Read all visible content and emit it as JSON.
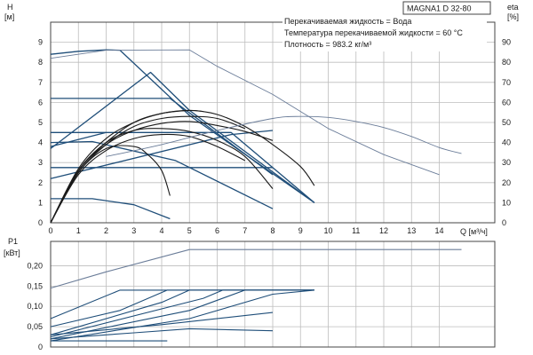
{
  "chart_data": [
    {
      "type": "line",
      "title": "MAGNA1 D 32-80",
      "annotations": [
        "Перекачиваемая жидкость = Вода",
        "Температура перекачиваемой жидкости = 60 °C",
        "Плотность = 983.2 кг/м³"
      ],
      "ylabel": "H",
      "yunit": "[м]",
      "ylabel_right": "eta",
      "yunit_right": "[%]",
      "xlabel": "Q [м³/ч]",
      "xlim": [
        0,
        16
      ],
      "ylim": [
        0,
        10
      ],
      "ylim_right": [
        0,
        100
      ],
      "xticks": [
        "0",
        "1",
        "2",
        "3",
        "4",
        "5",
        "6",
        "7",
        "8",
        "9",
        "10",
        "11",
        "12",
        "13",
        "14"
      ],
      "yticks": [
        "0",
        "1",
        "2",
        "3",
        "4",
        "5",
        "6",
        "7",
        "8",
        "9"
      ],
      "yticks_right": [
        "0",
        "10",
        "20",
        "30",
        "40",
        "50",
        "60",
        "70",
        "80",
        "90"
      ],
      "grid": true,
      "series": [
        {
          "group": "head_curve",
          "color": "#1f4e79",
          "points": [
            [
              0,
              8.4
            ],
            [
              1,
              8.55
            ],
            [
              2,
              8.62
            ],
            [
              2.5,
              8.6
            ],
            [
              5,
              5.35
            ],
            [
              9.5,
              1.0
            ]
          ]
        },
        {
          "group": "head_curve",
          "color": "#1f4e79",
          "points": [
            [
              0,
              3.7
            ],
            [
              3.6,
              7.5
            ],
            [
              5,
              5.6
            ],
            [
              9.5,
              1.0
            ]
          ]
        },
        {
          "group": "head_curve",
          "color": "#1f4e79",
          "points": [
            [
              0,
              6.2
            ],
            [
              4.3,
              6.2
            ],
            [
              8,
              2.4
            ]
          ]
        },
        {
          "group": "head_curve",
          "color": "#1f4e79",
          "points": [
            [
              0,
              4.5
            ],
            [
              2.5,
              4.5
            ],
            [
              6.5,
              4.5
            ],
            [
              9.5,
              1.0
            ]
          ]
        },
        {
          "group": "head_curve",
          "color": "#1f4e79",
          "points": [
            [
              0,
              2.75
            ],
            [
              6.2,
              2.75
            ],
            [
              8,
              2.75
            ]
          ]
        },
        {
          "group": "head_curve",
          "color": "#1f4e79",
          "points": [
            [
              0,
              4.0
            ],
            [
              1.5,
              4.05
            ],
            [
              4.5,
              3.1
            ],
            [
              8,
              0.7
            ]
          ]
        },
        {
          "group": "head_curve",
          "color": "#1f4e79",
          "points": [
            [
              0,
              2.2
            ],
            [
              6.5,
              4.4
            ],
            [
              8,
              4.6
            ]
          ]
        },
        {
          "group": "head_curve",
          "color": "#1f4e79",
          "points": [
            [
              0,
              1.2
            ],
            [
              1.5,
              1.2
            ],
            [
              3,
              0.9
            ],
            [
              4.3,
              0.2
            ]
          ]
        },
        {
          "group": "head_curve",
          "color": "#1f4e79",
          "points": [
            [
              0,
              3.8
            ],
            [
              2,
              4.5
            ]
          ]
        },
        {
          "group": "efficiency",
          "color": "#1a1a1a",
          "points": [
            [
              0,
              0
            ],
            [
              1,
              2.6
            ],
            [
              2,
              4.0
            ],
            [
              3,
              5.0
            ],
            [
              4,
              5.45
            ],
            [
              5,
              5.6
            ],
            [
              6,
              5.4
            ],
            [
              7,
              4.8
            ],
            [
              8,
              3.9
            ],
            [
              9,
              2.8
            ],
            [
              9.5,
              1.85
            ]
          ]
        },
        {
          "group": "efficiency",
          "color": "#1a1a1a",
          "points": [
            [
              0,
              0
            ],
            [
              1,
              2.7
            ],
            [
              2,
              4.2
            ],
            [
              3,
              5.0
            ],
            [
              4,
              5.45
            ],
            [
              5,
              5.6
            ],
            [
              5.5,
              5.55
            ]
          ]
        },
        {
          "group": "efficiency",
          "color": "#1a1a1a",
          "points": [
            [
              0,
              0
            ],
            [
              1,
              2.6
            ],
            [
              2,
              4.0
            ],
            [
              3,
              4.6
            ],
            [
              4,
              4.7
            ],
            [
              5,
              4.55
            ],
            [
              6,
              4.1
            ],
            [
              7,
              3.3
            ],
            [
              8,
              1.7
            ]
          ]
        },
        {
          "group": "efficiency",
          "color": "#1a1a1a",
          "points": [
            [
              0,
              0
            ],
            [
              1,
              2.6
            ],
            [
              2,
              3.9
            ],
            [
              3,
              4.6
            ],
            [
              4,
              4.95
            ],
            [
              5,
              5.05
            ],
            [
              6,
              4.85
            ],
            [
              7,
              4.55
            ],
            [
              8,
              4.1
            ]
          ]
        },
        {
          "group": "efficiency",
          "color": "#1a1a1a",
          "points": [
            [
              0,
              0
            ],
            [
              1,
              2.5
            ],
            [
              2,
              3.7
            ],
            [
              3,
              3.8
            ],
            [
              3.5,
              3.4
            ],
            [
              4,
              2.6
            ],
            [
              4.3,
              1.35
            ]
          ]
        },
        {
          "group": "efficiency",
          "color": "#1a1a1a",
          "points": [
            [
              0,
              0
            ],
            [
              1,
              2.4
            ],
            [
              2,
              3.6
            ],
            [
              3,
              4.2
            ],
            [
              4,
              4.4
            ],
            [
              5,
              4.3
            ],
            [
              6,
              3.8
            ],
            [
              7,
              3.1
            ]
          ]
        },
        {
          "group": "efficiency",
          "color": "#1a1a1a",
          "points": [
            [
              0,
              0
            ],
            [
              1,
              2.5
            ],
            [
              2,
              3.9
            ],
            [
              3,
              4.8
            ],
            [
              4,
              5.2
            ],
            [
              5,
              5.3
            ],
            [
              6,
              5.2
            ],
            [
              7,
              4.7
            ]
          ]
        },
        {
          "group": "p1_envelope",
          "color": "#6b7d99",
          "points": [
            [
              0,
              8.2
            ],
            [
              2,
              8.6
            ],
            [
              5,
              8.62
            ],
            [
              6,
              7.8
            ],
            [
              8,
              6.4
            ],
            [
              10,
              4.7
            ],
            [
              12,
              3.4
            ],
            [
              14,
              2.4
            ]
          ]
        },
        {
          "group": "eta_envelope",
          "color": "#6b7d99",
          "points": [
            [
              2,
              3.3
            ],
            [
              4,
              3.9
            ],
            [
              6,
              4.6
            ],
            [
              8,
              5.2
            ],
            [
              9,
              5.3
            ],
            [
              10,
              5.25
            ],
            [
              11,
              5.05
            ],
            [
              12,
              4.75
            ],
            [
              13,
              4.3
            ],
            [
              14,
              3.75
            ],
            [
              14.8,
              3.45
            ]
          ]
        }
      ]
    },
    {
      "type": "line",
      "ylabel": "P1",
      "yunit": "[кВт]",
      "xlim": [
        0,
        16
      ],
      "ylim": [
        0,
        0.26
      ],
      "yticks": [
        "0",
        "0,05",
        "0,10",
        "0,15",
        "0,20"
      ],
      "grid": true,
      "series": [
        {
          "group": "power",
          "color": "#6b7d99",
          "points": [
            [
              0,
              0.145
            ],
            [
              2,
              0.185
            ],
            [
              5,
              0.24
            ],
            [
              6.5,
              0.24
            ],
            [
              14.8,
              0.24
            ]
          ]
        },
        {
          "group": "power",
          "color": "#1f4e79",
          "points": [
            [
              0,
              0.07
            ],
            [
              2.5,
              0.14
            ],
            [
              9.5,
              0.14
            ]
          ]
        },
        {
          "group": "power",
          "color": "#1f4e79",
          "points": [
            [
              0,
              0.05
            ],
            [
              2.5,
              0.09
            ],
            [
              4.2,
              0.14
            ],
            [
              9.5,
              0.14
            ]
          ]
        },
        {
          "group": "power",
          "color": "#1f4e79",
          "points": [
            [
              0,
              0.03
            ],
            [
              4,
              0.11
            ],
            [
              5,
              0.14
            ],
            [
              9.5,
              0.14
            ]
          ]
        },
        {
          "group": "power",
          "color": "#1f4e79",
          "points": [
            [
              0,
              0.025
            ],
            [
              5.5,
              0.12
            ],
            [
              6.2,
              0.14
            ],
            [
              9.5,
              0.14
            ]
          ]
        },
        {
          "group": "power",
          "color": "#1f4e79",
          "points": [
            [
              0,
              0.02
            ],
            [
              5,
              0.09
            ],
            [
              7,
              0.14
            ],
            [
              9.5,
              0.14
            ]
          ]
        },
        {
          "group": "power",
          "color": "#1f4e79",
          "points": [
            [
              0,
              0.015
            ],
            [
              5,
              0.07
            ],
            [
              8,
              0.13
            ],
            [
              9.5,
              0.14
            ]
          ]
        },
        {
          "group": "power",
          "color": "#1f4e79",
          "points": [
            [
              0,
              0.03
            ],
            [
              4,
              0.055
            ],
            [
              8,
              0.085
            ]
          ]
        },
        {
          "group": "power",
          "color": "#1f4e79",
          "points": [
            [
              0,
              0.02
            ],
            [
              3,
              0.035
            ],
            [
              5,
              0.045
            ],
            [
              8,
              0.04
            ]
          ]
        },
        {
          "group": "power",
          "color": "#1f4e79",
          "points": [
            [
              0,
              0.015
            ],
            [
              4.2,
              0.015
            ]
          ]
        }
      ]
    }
  ]
}
